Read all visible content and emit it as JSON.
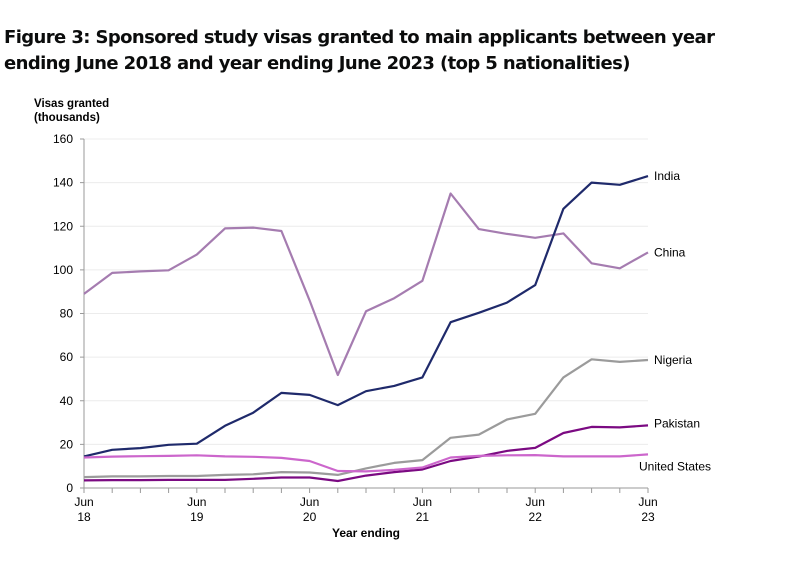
{
  "chart_data": {
    "type": "line",
    "title": "Figure 3: Sponsored study visas granted to main applicants between year ending June 2018 and year ending June 2023 (top 5 nationalities)",
    "ylabel_line1": "Visas granted",
    "ylabel_line2": "(thousands)",
    "xlabel": "Year ending",
    "ylim": [
      0,
      160
    ],
    "yticks": [
      0,
      20,
      40,
      60,
      80,
      100,
      120,
      140,
      160
    ],
    "grid": true,
    "legend": "direct-labels-right",
    "x": [
      "Jun 18",
      "Sep 18",
      "Dec 18",
      "Mar 19",
      "Jun 19",
      "Sep 19",
      "Dec 19",
      "Mar 20",
      "Jun 20",
      "Sep 20",
      "Dec 20",
      "Mar 21",
      "Jun 21",
      "Sep 21",
      "Dec 21",
      "Mar 22",
      "Jun 22",
      "Sep 22",
      "Dec 22",
      "Mar 23",
      "Jun 23"
    ],
    "xtick_labels": [
      {
        "index": 0,
        "line1": "Jun",
        "line2": "18"
      },
      {
        "index": 4,
        "line1": "Jun",
        "line2": "19"
      },
      {
        "index": 8,
        "line1": "Jun",
        "line2": "20"
      },
      {
        "index": 12,
        "line1": "Jun",
        "line2": "21"
      },
      {
        "index": 16,
        "line1": "Jun",
        "line2": "22"
      },
      {
        "index": 20,
        "line1": "Jun",
        "line2": "23"
      }
    ],
    "series": [
      {
        "name": "China",
        "color": "#a57cb0",
        "values": [
          89,
          98.6,
          99.3,
          99.8,
          107,
          119,
          119.4,
          117.8,
          86,
          51.8,
          81,
          87,
          95,
          135,
          118.7,
          116.5,
          114.7,
          116.7,
          103,
          100.7,
          108
        ]
      },
      {
        "name": "India",
        "color": "#1f2a6b",
        "values": [
          14.5,
          17.5,
          18.3,
          19.8,
          20.3,
          28.5,
          34.5,
          43.6,
          42.7,
          38,
          44.4,
          46.8,
          50.7,
          76,
          80.3,
          85,
          93,
          128,
          140,
          139,
          143
        ]
      },
      {
        "name": "Nigeria",
        "color": "#9b9b9b",
        "values": [
          5,
          5.3,
          5.3,
          5.5,
          5.5,
          6,
          6.3,
          7.3,
          7.1,
          6,
          9,
          11.5,
          12.8,
          23,
          24.5,
          31.4,
          34,
          50.7,
          59,
          57.8,
          58.7
        ]
      },
      {
        "name": "Pakistan",
        "color": "#7b0a82",
        "values": [
          3.5,
          3.6,
          3.6,
          3.7,
          3.7,
          3.7,
          4.2,
          4.8,
          4.8,
          3.2,
          5.7,
          7.3,
          8.5,
          12.4,
          14.4,
          17,
          18.4,
          25.2,
          28,
          27.8,
          28.7
        ]
      },
      {
        "name": "United States",
        "color": "#cc66cc",
        "values": [
          14,
          14.4,
          14.6,
          14.7,
          15,
          14.5,
          14.3,
          13.8,
          12.4,
          7.8,
          7.6,
          8.3,
          9.4,
          14,
          14.7,
          15,
          15.1,
          14.5,
          14.5,
          14.5,
          15.4
        ]
      }
    ]
  }
}
